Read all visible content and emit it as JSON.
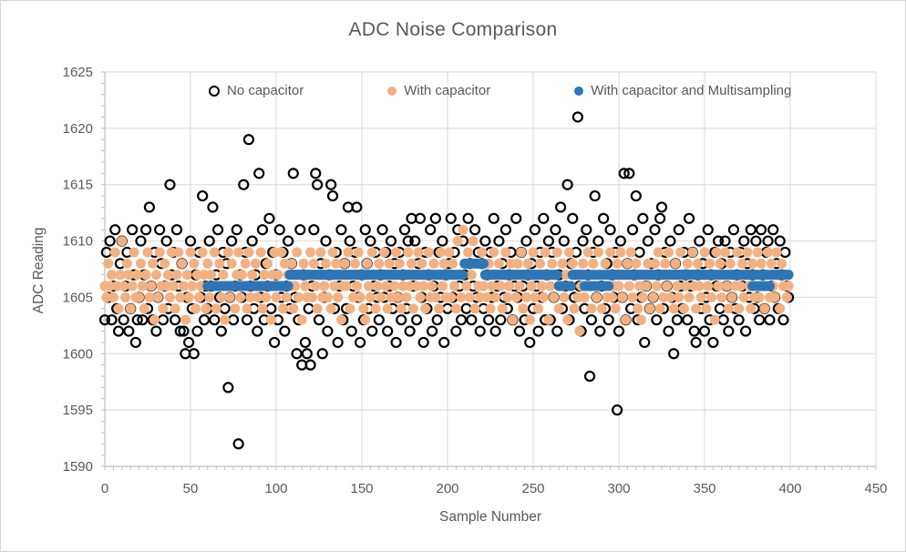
{
  "chart_data": {
    "type": "scatter",
    "title": "ADC Noise Comparison",
    "xlabel": "Sample Number",
    "ylabel": "ADC Reading",
    "xlim": [
      0,
      450
    ],
    "ylim": [
      1590,
      1625
    ],
    "x_ticks": [
      0,
      50,
      100,
      150,
      200,
      250,
      300,
      350,
      400,
      450
    ],
    "y_ticks": [
      1590,
      1595,
      1600,
      1605,
      1610,
      1615,
      1620,
      1625
    ],
    "x_minor_step": 5,
    "y_minor_step": 1,
    "grid": true,
    "legend_position": "top-inside",
    "colors": {
      "grid": "#D9D9D9",
      "axis": "#BFBFBF",
      "text": "#595959"
    },
    "series": [
      {
        "name": "No capacitor",
        "marker": "open-circle",
        "color": "#000000",
        "x_start": 0,
        "x_step": 1,
        "values": [
          1603,
          1609,
          1605,
          1610,
          1603,
          1606,
          1611,
          1604,
          1602,
          1608,
          1610,
          1603,
          1606,
          1609,
          1602,
          1604,
          1611,
          1607,
          1601,
          1603,
          1605,
          1610,
          1603,
          1607,
          1611,
          1604,
          1613,
          1606,
          1603,
          1609,
          1602,
          1605,
          1611,
          1608,
          1603,
          1606,
          1610,
          1604,
          1615,
          1607,
          1609,
          1603,
          1611,
          1606,
          1602,
          1608,
          1602,
          1600,
          1605,
          1601,
          1610,
          1604,
          1600,
          1607,
          1602,
          1609,
          1605,
          1614,
          1603,
          1606,
          1604,
          1610,
          1606,
          1613,
          1603,
          1607,
          1611,
          1605,
          1602,
          1609,
          1604,
          1608,
          1597,
          1605,
          1610,
          1603,
          1606,
          1611,
          1592,
          1607,
          1605,
          1615,
          1609,
          1603,
          1619,
          1606,
          1610,
          1604,
          1607,
          1602,
          1616,
          1605,
          1611,
          1603,
          1608,
          1606,
          1612,
          1604,
          1609,
          1601,
          1607,
          1603,
          1611,
          1605,
          1609,
          1602,
          1606,
          1610,
          1604,
          1608,
          1616,
          1605,
          1600,
          1603,
          1611,
          1599,
          1607,
          1601,
          1600,
          1604,
          1599,
          1606,
          1611,
          1616,
          1615,
          1603,
          1608,
          1600,
          1605,
          1610,
          1602,
          1607,
          1615,
          1614,
          1604,
          1609,
          1601,
          1606,
          1611,
          1603,
          1608,
          1604,
          1613,
          1610,
          1602,
          1606,
          1609,
          1613,
          1605,
          1601,
          1607,
          1603,
          1611,
          1608,
          1604,
          1610,
          1602,
          1606,
          1609,
          1605,
          1603,
          1607,
          1611,
          1605,
          1609,
          1602,
          1606,
          1610,
          1604,
          1608,
          1601,
          1605,
          1609,
          1603,
          1607,
          1611,
          1604,
          1610,
          1602,
          1612,
          1606,
          1610,
          1603,
          1608,
          1612,
          1605,
          1601,
          1609,
          1604,
          1607,
          1611,
          1602,
          1606,
          1612,
          1603,
          1609,
          1605,
          1610,
          1601,
          1607,
          1604,
          1608,
          1612,
          1605,
          1609,
          1602,
          1611,
          1606,
          1603,
          1610,
          1607,
          1604,
          1612,
          1608,
          1603,
          1606,
          1611,
          1605,
          1609,
          1602,
          1608,
          1604,
          1610,
          1607,
          1603,
          1609,
          1605,
          1612,
          1602,
          1606,
          1610,
          1603,
          1608,
          1605,
          1611,
          1604,
          1607,
          1609,
          1603,
          1606,
          1612,
          1605,
          1602,
          1609,
          1606,
          1603,
          1610,
          1607,
          1601,
          1608,
          1604,
          1611,
          1606,
          1602,
          1609,
          1605,
          1612,
          1603,
          1607,
          1610,
          1603,
          1609,
          1605,
          1611,
          1602,
          1607,
          1613,
          1604,
          1610,
          1606,
          1615,
          1603,
          1608,
          1612,
          1605,
          1609,
          1621,
          1606,
          1602,
          1610,
          1604,
          1611,
          1607,
          1598,
          1603,
          1609,
          1614,
          1605,
          1610,
          1602,
          1606,
          1612,
          1604,
          1608,
          1603,
          1611,
          1607,
          1605,
          1609,
          1595,
          1602,
          1610,
          1605,
          1616,
          1603,
          1608,
          1616,
          1604,
          1611,
          1607,
          1614,
          1603,
          1609,
          1605,
          1612,
          1601,
          1606,
          1610,
          1604,
          1608,
          1605,
          1611,
          1603,
          1607,
          1612,
          1613,
          1604,
          1609,
          1606,
          1602,
          1610,
          1605,
          1600,
          1608,
          1603,
          1611,
          1606,
          1604,
          1609,
          1607,
          1603,
          1612,
          1606,
          1609,
          1602,
          1601,
          1607,
          1610,
          1604,
          1608,
          1602,
          1605,
          1611,
          1603,
          1607,
          1601,
          1609,
          1606,
          1610,
          1604,
          1608,
          1603,
          1610,
          1606,
          1602,
          1609,
          1605,
          1611,
          1604,
          1607,
          1603,
          1609,
          1606,
          1610,
          1602,
          1608,
          1605,
          1611,
          1607,
          1604,
          1610,
          1605,
          1603,
          1611,
          1607,
          1604,
          1609,
          1610,
          1603,
          1606,
          1611,
          1605,
          1608,
          1604,
          1610,
          1607,
          1603,
          1609,
          1606,
          1605
        ]
      },
      {
        "name": "With capacitor",
        "marker": "filled-circle",
        "color": "#F2B183",
        "x_start": 0,
        "x_step": 1,
        "values": [
          1606,
          1605,
          1608,
          1606,
          1607,
          1605,
          1609,
          1606,
          1604,
          1607,
          1610,
          1606,
          1605,
          1608,
          1607,
          1604,
          1606,
          1609,
          1605,
          1607,
          1605,
          1608,
          1606,
          1604,
          1607,
          1609,
          1605,
          1606,
          1608,
          1603,
          1607,
          1605,
          1609,
          1606,
          1604,
          1608,
          1606,
          1607,
          1605,
          1609,
          1606,
          1604,
          1607,
          1609,
          1605,
          1608,
          1606,
          1603,
          1607,
          1605,
          1609,
          1606,
          1608,
          1604,
          1607,
          1605,
          1606,
          1609,
          1607,
          1604,
          1608,
          1605,
          1607,
          1606,
          1609,
          1604,
          1606,
          1608,
          1605,
          1607,
          1603,
          1606,
          1609,
          1605,
          1608,
          1606,
          1604,
          1607,
          1609,
          1605,
          1607,
          1606,
          1608,
          1604,
          1609,
          1605,
          1607,
          1606,
          1608,
          1605,
          1606,
          1609,
          1604,
          1607,
          1605,
          1608,
          1606,
          1603,
          1607,
          1609,
          1605,
          1607,
          1606,
          1609,
          1604,
          1608,
          1605,
          1607,
          1606,
          1608,
          1604,
          1606,
          1609,
          1605,
          1607,
          1603,
          1608,
          1606,
          1605,
          1607,
          1609,
          1605,
          1608,
          1606,
          1604,
          1607,
          1609,
          1605,
          1606,
          1608,
          1605,
          1607,
          1604,
          1609,
          1606,
          1608,
          1605,
          1607,
          1603,
          1606,
          1608,
          1606,
          1609,
          1604,
          1607,
          1605,
          1608,
          1606,
          1609,
          1605,
          1607,
          1604,
          1603,
          1608,
          1606,
          1605,
          1609,
          1607,
          1604,
          1606,
          1608,
          1605,
          1607,
          1609,
          1606,
          1604,
          1608,
          1605,
          1607,
          1606,
          1609,
          1605,
          1608,
          1604,
          1606,
          1607,
          1605,
          1609,
          1606,
          1608,
          1604,
          1607,
          1606,
          1609,
          1605,
          1608,
          1606,
          1604,
          1607,
          1609,
          1605,
          1606,
          1608,
          1605,
          1607,
          1604,
          1609,
          1606,
          1608,
          1605,
          1607,
          1609,
          1605,
          1608,
          1606,
          1604,
          1610,
          1607,
          1605,
          1611,
          1608,
          1606,
          1609,
          1605,
          1607,
          1610,
          1604,
          1608,
          1606,
          1605,
          1609,
          1606,
          1607,
          1605,
          1608,
          1604,
          1606,
          1609,
          1605,
          1607,
          1608,
          1606,
          1604,
          1607,
          1609,
          1605,
          1606,
          1608,
          1603,
          1607,
          1605,
          1608,
          1606,
          1609,
          1604,
          1607,
          1605,
          1608,
          1603,
          1606,
          1609,
          1605,
          1607,
          1604,
          1608,
          1606,
          1605,
          1609,
          1607,
          1603,
          1606,
          1608,
          1605,
          1607,
          1609,
          1604,
          1606,
          1608,
          1605,
          1607,
          1603,
          1609,
          1606,
          1608,
          1604,
          1607,
          1605,
          1602,
          1606,
          1608,
          1605,
          1607,
          1609,
          1606,
          1604,
          1608,
          1606,
          1605,
          1609,
          1607,
          1604,
          1606,
          1608,
          1605,
          1607,
          1609,
          1605,
          1606,
          1604,
          1608,
          1606,
          1609,
          1605,
          1607,
          1603,
          1608,
          1606,
          1609,
          1605,
          1607,
          1608,
          1604,
          1606,
          1603,
          1605,
          1607,
          1606,
          1608,
          1604,
          1607,
          1605,
          1608,
          1606,
          1609,
          1604,
          1607,
          1605,
          1608,
          1606,
          1609,
          1605,
          1607,
          1604,
          1608,
          1606,
          1605,
          1609,
          1607,
          1604,
          1606,
          1608,
          1605,
          1607,
          1609,
          1606,
          1604,
          1608,
          1606,
          1605,
          1607,
          1609,
          1604,
          1606,
          1608,
          1605,
          1607,
          1603,
          1609,
          1606,
          1608,
          1605,
          1607,
          1609,
          1606,
          1604,
          1608,
          1605,
          1607,
          1606,
          1609,
          1604,
          1606,
          1608,
          1605,
          1607,
          1609,
          1606,
          1604,
          1608,
          1605,
          1607,
          1609,
          1605,
          1608,
          1606,
          1604,
          1607,
          1609,
          1605,
          1608,
          1606,
          1605,
          1609,
          1607,
          1604,
          1608,
          1606,
          1607,
          1605,
          1606
        ]
      },
      {
        "name": "With capacitor and Multisampling",
        "marker": "filled-circle",
        "color": "#2E75B6",
        "x_start": 60,
        "x_step": 1,
        "values": [
          1606,
          1606,
          1606,
          1606,
          1606,
          1606,
          1606,
          1606,
          1606,
          1606,
          1606,
          1606,
          1606,
          1606,
          1606,
          1606,
          1606,
          1606,
          1606,
          1606,
          1606,
          1606,
          1606,
          1606,
          1606,
          1606,
          1606,
          1606,
          1606,
          1606,
          1606,
          1606,
          1606,
          1606,
          1606,
          1606,
          1606,
          1606,
          1606,
          1606,
          1606,
          1606,
          1606,
          1606,
          1606,
          1606,
          1606,
          1606,
          1607,
          1607,
          1607,
          1607,
          1607,
          1607,
          1607,
          1607,
          1607,
          1607,
          1607,
          1607,
          1607,
          1607,
          1607,
          1607,
          1607,
          1607,
          1607,
          1607,
          1607,
          1607,
          1607,
          1607,
          1607,
          1607,
          1607,
          1607,
          1607,
          1607,
          1607,
          1607,
          1607,
          1607,
          1607,
          1607,
          1607,
          1607,
          1607,
          1607,
          1607,
          1607,
          1607,
          1607,
          1607,
          1607,
          1607,
          1607,
          1607,
          1607,
          1607,
          1607,
          1607,
          1607,
          1607,
          1607,
          1607,
          1607,
          1607,
          1607,
          1607,
          1607,
          1607,
          1607,
          1607,
          1607,
          1607,
          1607,
          1607,
          1607,
          1607,
          1607,
          1607,
          1607,
          1607,
          1607,
          1607,
          1607,
          1607,
          1607,
          1607,
          1607,
          1607,
          1607,
          1607,
          1607,
          1607,
          1607,
          1607,
          1607,
          1607,
          1607,
          1607,
          1607,
          1607,
          1607,
          1607,
          1607,
          1607,
          1607,
          1607,
          1607,
          1608,
          1608,
          1608,
          1608,
          1608,
          1608,
          1608,
          1608,
          1608,
          1608,
          1608,
          1608,
          1607,
          1607,
          1607,
          1607,
          1607,
          1607,
          1607,
          1607,
          1607,
          1607,
          1607,
          1607,
          1607,
          1607,
          1607,
          1607,
          1607,
          1607,
          1607,
          1607,
          1607,
          1607,
          1607,
          1607,
          1607,
          1607,
          1607,
          1607,
          1607,
          1607,
          1607,
          1607,
          1607,
          1607,
          1607,
          1607,
          1607,
          1607,
          1607,
          1607,
          1607,
          1607,
          1607,
          1606,
          1606,
          1606,
          1606,
          1606,
          1606,
          1606,
          1606,
          1607,
          1607,
          1607,
          1607,
          1607,
          1607,
          1607,
          1606,
          1607,
          1606,
          1607,
          1606,
          1607,
          1606,
          1607,
          1606,
          1607,
          1606,
          1607,
          1606,
          1607,
          1606,
          1607,
          1607,
          1607,
          1607,
          1607,
          1607,
          1607,
          1607,
          1607,
          1607,
          1607,
          1607,
          1607,
          1607,
          1607,
          1607,
          1607,
          1607,
          1607,
          1607,
          1607,
          1607,
          1607,
          1607,
          1607,
          1607,
          1607,
          1607,
          1607,
          1607,
          1607,
          1607,
          1607,
          1607,
          1607,
          1607,
          1607,
          1607,
          1607,
          1607,
          1607,
          1607,
          1607,
          1607,
          1607,
          1607,
          1607,
          1607,
          1607,
          1607,
          1607,
          1607,
          1607,
          1607,
          1607,
          1607,
          1607,
          1607,
          1607,
          1607,
          1607,
          1607,
          1607,
          1607,
          1607,
          1607,
          1607,
          1607,
          1607,
          1607,
          1607,
          1607,
          1607,
          1607,
          1607,
          1607,
          1607,
          1607,
          1607,
          1607,
          1607,
          1607,
          1607,
          1606,
          1607,
          1606,
          1607,
          1606,
          1607,
          1606,
          1607,
          1606,
          1607,
          1606,
          1607,
          1607,
          1607,
          1607,
          1607,
          1607,
          1607,
          1607,
          1607,
          1607,
          1607
        ]
      }
    ]
  }
}
